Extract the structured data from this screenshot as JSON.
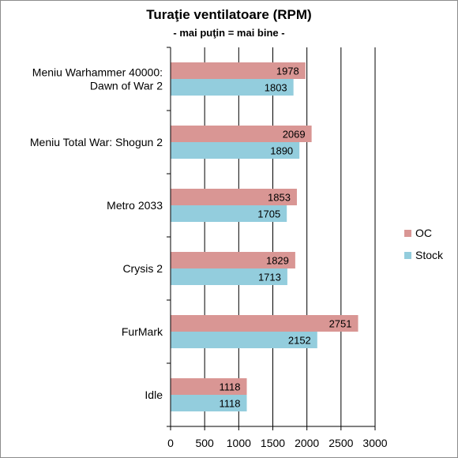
{
  "chart_data": {
    "type": "bar",
    "orientation": "horizontal",
    "title": "Turaţie ventilatoare (RPM)",
    "subtitle": "- mai puţin = mai bine -",
    "categories": [
      "Meniu Warhammer 40000: Dawn of War 2",
      "Meniu Total War: Shogun 2",
      "Metro 2033",
      "Crysis 2",
      "FurMark",
      "Idle"
    ],
    "category_lines": [
      [
        "Meniu Warhammer 40000:",
        "Dawn of War 2"
      ],
      [
        "Meniu Total War: Shogun 2"
      ],
      [
        "Metro 2033"
      ],
      [
        "Crysis 2"
      ],
      [
        "FurMark"
      ],
      [
        "Idle"
      ]
    ],
    "series": [
      {
        "name": "OC",
        "color": "#d99694",
        "values": [
          1978,
          2069,
          1853,
          1829,
          2751,
          1118
        ]
      },
      {
        "name": "Stock",
        "color": "#93cddd",
        "values": [
          1803,
          1890,
          1705,
          1713,
          2152,
          1118
        ]
      }
    ],
    "xlim": [
      0,
      3000
    ],
    "xticks": [
      0,
      500,
      1000,
      1500,
      2000,
      2500,
      3000
    ],
    "grid": "vertical",
    "legend": "right",
    "xlabel": "",
    "ylabel": ""
  }
}
